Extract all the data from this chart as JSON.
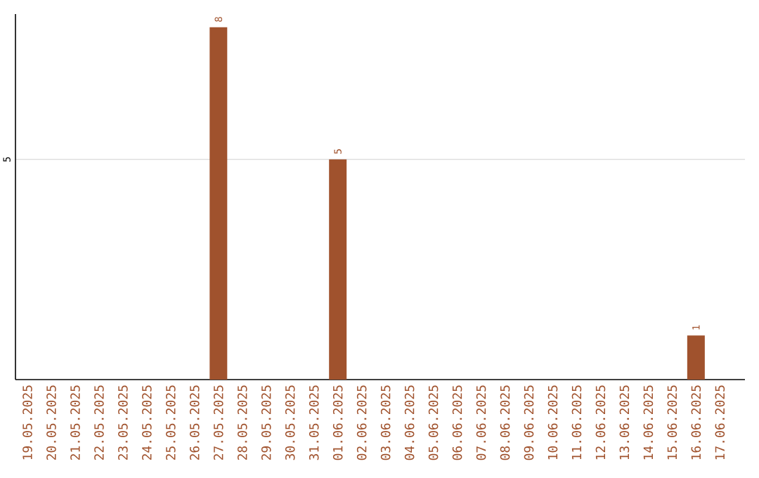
{
  "chart_data": {
    "type": "bar",
    "categories": [
      "19.05.2025",
      "20.05.2025",
      "21.05.2025",
      "22.05.2025",
      "23.05.2025",
      "24.05.2025",
      "25.05.2025",
      "26.05.2025",
      "27.05.2025",
      "28.05.2025",
      "29.05.2025",
      "30.05.2025",
      "31.05.2025",
      "01.06.2025",
      "02.06.2025",
      "03.06.2025",
      "04.06.2025",
      "05.06.2025",
      "06.06.2025",
      "07.06.2025",
      "08.06.2025",
      "09.06.2025",
      "10.06.2025",
      "11.06.2025",
      "12.06.2025",
      "13.06.2025",
      "14.06.2025",
      "15.06.2025",
      "16.06.2025",
      "17.06.2025"
    ],
    "values": [
      0,
      0,
      0,
      0,
      0,
      0,
      0,
      0,
      8,
      0,
      0,
      0,
      0,
      5,
      0,
      0,
      0,
      0,
      0,
      0,
      0,
      0,
      0,
      0,
      0,
      0,
      0,
      0,
      1,
      0
    ],
    "value_labels": [
      null,
      null,
      null,
      null,
      null,
      null,
      null,
      null,
      "8",
      null,
      null,
      null,
      null,
      "5",
      null,
      null,
      null,
      null,
      null,
      null,
      null,
      null,
      null,
      null,
      null,
      null,
      null,
      null,
      "1",
      null
    ],
    "color": "#a0522d",
    "ylim": [
      0,
      8.3
    ],
    "yticks": [
      5
    ],
    "grid": "y"
  }
}
